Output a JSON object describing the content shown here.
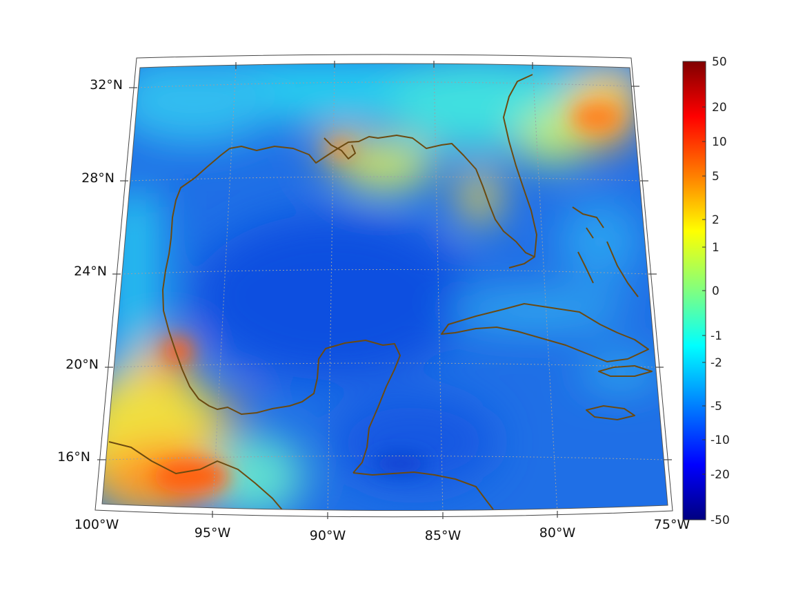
{
  "map": {
    "lat_labels": [
      "32°N",
      "28°N",
      "24°N",
      "20°N",
      "16°N"
    ],
    "lon_labels": [
      "100°W",
      "95°W",
      "90°W",
      "85°W",
      "80°W",
      "75°W"
    ],
    "extent": {
      "lon_min": -100,
      "lon_max": -75,
      "lat_min": 14,
      "lat_max": 33
    }
  },
  "colorbar": {
    "tick_labels": [
      "50",
      "20",
      "10",
      "5",
      "2",
      "1",
      "0",
      "-1",
      "-2",
      "-5",
      "-10",
      "-20",
      "-50"
    ],
    "colormap": "jet",
    "colors": [
      "#800000",
      "#ff0000",
      "#ff8000",
      "#ffff00",
      "#80ff80",
      "#00ffff",
      "#0080ff",
      "#0000ff",
      "#000080"
    ]
  },
  "colors": {
    "coastline": "#6b4a10",
    "gridline": "#9aa0a6",
    "ocean_base": "#1f6fe6"
  }
}
